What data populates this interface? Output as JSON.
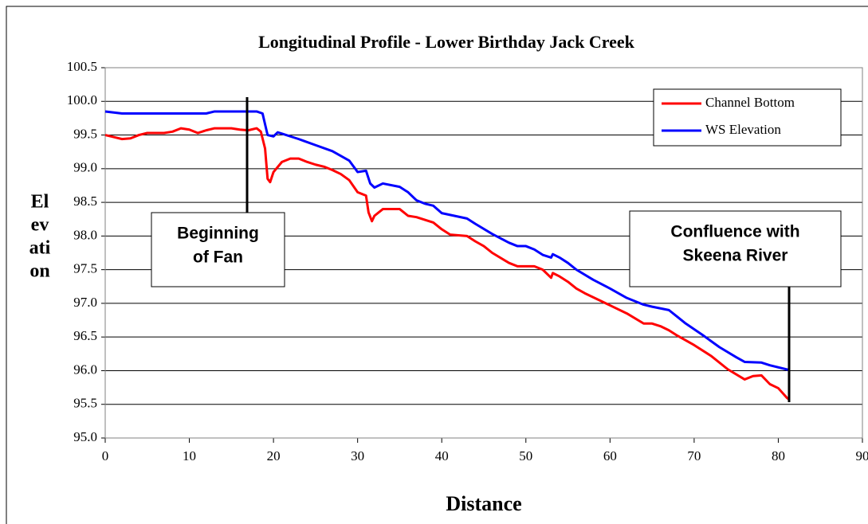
{
  "chart_data": {
    "type": "line",
    "title": "Longitudinal Profile - Lower Birthday Jack Creek",
    "xlabel": "Distance",
    "ylabel_lines": [
      "El",
      "ev",
      "ati",
      "on"
    ],
    "xlim": [
      0,
      90
    ],
    "ylim": [
      95,
      100.5
    ],
    "xticks": [
      0,
      10,
      20,
      30,
      40,
      50,
      60,
      70,
      80,
      90
    ],
    "yticks": [
      {
        "value": 95,
        "label": "95.0"
      },
      95.5,
      {
        "value": 96,
        "label": "96.0"
      },
      96.5,
      {
        "value": 97,
        "label": "97.0"
      },
      97.5,
      {
        "value": 98,
        "label": "98.0"
      },
      98.5,
      {
        "value": 99,
        "label": "99.0"
      },
      99.5,
      {
        "value": 100,
        "label": "100.0"
      },
      100.5
    ],
    "grid": true,
    "legend": "upper right",
    "series": [
      {
        "name": "Channel Bottom",
        "color": "#ff0000",
        "x": [
          0,
          1,
          2,
          3,
          4,
          5,
          7,
          8,
          9,
          10,
          11,
          12,
          13,
          15,
          16,
          17,
          18,
          18.5,
          19,
          19.3,
          19.6,
          20,
          21,
          22,
          23,
          24,
          25,
          26,
          27,
          28,
          29,
          30,
          31,
          31.3,
          31.7,
          32,
          33,
          35,
          36,
          37,
          38,
          39,
          40,
          41,
          43,
          44,
          45,
          46,
          48,
          49,
          51,
          52,
          53,
          53.2,
          54,
          55,
          56,
          57,
          60,
          62,
          64,
          65,
          66,
          67,
          68,
          70,
          72,
          74,
          76,
          77,
          78,
          79,
          80,
          81,
          81.3
        ],
        "values": [
          99.5,
          99.47,
          99.44,
          99.45,
          99.5,
          99.53,
          99.53,
          99.55,
          99.6,
          99.58,
          99.53,
          99.57,
          99.6,
          99.6,
          99.58,
          99.57,
          99.6,
          99.55,
          99.3,
          98.85,
          98.8,
          98.95,
          99.1,
          99.15,
          99.15,
          99.1,
          99.06,
          99.03,
          98.98,
          98.92,
          98.83,
          98.65,
          98.6,
          98.35,
          98.22,
          98.3,
          98.4,
          98.4,
          98.3,
          98.28,
          98.24,
          98.2,
          98.1,
          98.02,
          98.0,
          97.92,
          97.85,
          97.75,
          97.6,
          97.55,
          97.55,
          97.5,
          97.38,
          97.45,
          97.4,
          97.32,
          97.22,
          97.15,
          96.97,
          96.85,
          96.7,
          96.7,
          96.66,
          96.6,
          96.52,
          96.38,
          96.22,
          96.02,
          95.87,
          95.92,
          95.93,
          95.8,
          95.74,
          95.6,
          95.57
        ]
      },
      {
        "name": "WS Elevation",
        "color": "#0000ff",
        "x": [
          0,
          2,
          12,
          13,
          18,
          18.7,
          19.3,
          20,
          20.5,
          21,
          23,
          25,
          27,
          29,
          30,
          31,
          31.5,
          32,
          33,
          35,
          36,
          37,
          38,
          39,
          40,
          43,
          44,
          46,
          48,
          49,
          50,
          51,
          52,
          53,
          53.2,
          54,
          55,
          56,
          58,
          60,
          62,
          64,
          65,
          67,
          68,
          69,
          71,
          73,
          75,
          76,
          78,
          79,
          81.3
        ],
        "values": [
          99.85,
          99.82,
          99.82,
          99.85,
          99.85,
          99.82,
          99.5,
          99.48,
          99.54,
          99.52,
          99.44,
          99.35,
          99.26,
          99.12,
          98.95,
          98.97,
          98.78,
          98.72,
          98.78,
          98.73,
          98.65,
          98.53,
          98.48,
          98.45,
          98.34,
          98.26,
          98.18,
          98.03,
          97.9,
          97.85,
          97.85,
          97.8,
          97.72,
          97.68,
          97.73,
          97.68,
          97.6,
          97.5,
          97.35,
          97.22,
          97.08,
          96.98,
          96.95,
          96.9,
          96.8,
          96.7,
          96.53,
          96.35,
          96.2,
          96.13,
          96.12,
          96.08,
          96.01
        ]
      }
    ],
    "annotations": [
      {
        "lines": [
          "Beginning",
          "of Fan"
        ]
      },
      {
        "lines": [
          "Confluence with",
          "Skeena River"
        ]
      }
    ]
  }
}
